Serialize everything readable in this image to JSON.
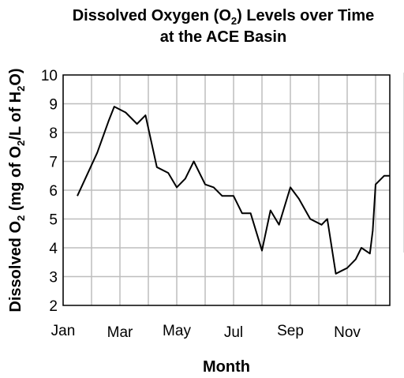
{
  "chart_data": {
    "type": "line",
    "title_parts": [
      "Dissolved Oxygen (O",
      "2",
      ") Levels over Time"
    ],
    "title_line2": "at the ACE Basin",
    "xlabel": "Month",
    "ylabel_parts": [
      "Dissolved O",
      "2",
      " (mg of O",
      "2",
      "/L of H",
      "2",
      "O)"
    ],
    "x_ticks": [
      "Jan",
      "Mar",
      "May",
      "Jul",
      "Sep",
      "Nov"
    ],
    "y_ticks": [
      "2",
      "3",
      "4",
      "5",
      "6",
      "7",
      "8",
      "9",
      "10"
    ],
    "xlim": [
      0,
      11.5
    ],
    "ylim": [
      2,
      10
    ],
    "grid": true,
    "series": [
      {
        "x": [
          0.5,
          1.2,
          1.6,
          1.8,
          2.2,
          2.6,
          2.9,
          3.3,
          3.7,
          4.0,
          4.3,
          4.6,
          5.0,
          5.3,
          5.6,
          6.0,
          6.3,
          6.6,
          7.0,
          7.3,
          7.6,
          8.0,
          8.3,
          8.7,
          9.1,
          9.2,
          9.3,
          9.6,
          9.8,
          10.0,
          10.3,
          10.5,
          10.8,
          10.9,
          11.0,
          11.3,
          11.5,
          11.7
        ],
        "y": [
          5.8,
          7.3,
          8.4,
          8.9,
          8.7,
          8.3,
          8.6,
          6.8,
          6.6,
          6.1,
          6.4,
          7.0,
          6.2,
          6.1,
          5.8,
          5.8,
          5.2,
          5.2,
          3.9,
          5.3,
          4.8,
          6.1,
          5.7,
          5.0,
          4.8,
          4.9,
          5.0,
          3.1,
          3.2,
          3.3,
          3.6,
          4.0,
          3.8,
          4.6,
          6.2,
          6.5,
          6.5,
          6.7
        ]
      }
    ]
  }
}
